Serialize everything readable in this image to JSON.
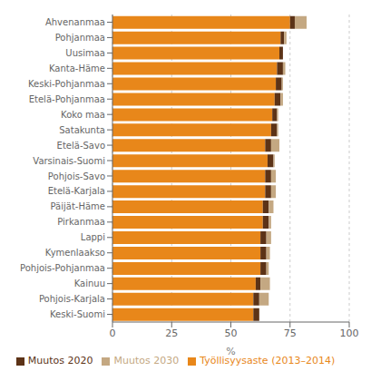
{
  "chart_data": {
    "type": "bar",
    "orientation": "horizontal",
    "stacked": true,
    "categories": [
      "Ahvenanmaa",
      "Pohjanmaa",
      "Uusimaa",
      "Kanta-Häme",
      "Keski-Pohjanmaa",
      "Etelä-Pohjanmaa",
      "Koko maa",
      "Satakunta",
      "Etelä-Savo",
      "Varsinais-Suomi",
      "Pohjois-Savo",
      "Etelä-Karjala",
      "Päijät-Häme",
      "Pirkanmaa",
      "Lappi",
      "Kymenlaakso",
      "Pohjois-Pohjanmaa",
      "Kainuu",
      "Pohjois-Karjala",
      "Keski-Suomi"
    ],
    "series": [
      {
        "name": "Työllisyysaste (2013–2014)",
        "color": "#E8871A",
        "values": [
          75.0,
          71.0,
          70.5,
          69.5,
          69.0,
          68.5,
          67.5,
          67.0,
          64.5,
          65.5,
          64.5,
          64.5,
          63.5,
          63.5,
          62.5,
          62.5,
          62.5,
          60.5,
          59.5,
          59.5
        ]
      },
      {
        "name": "Muutos 2020",
        "color": "#5C3317",
        "values": [
          2.0,
          1.5,
          1.5,
          2.5,
          2.5,
          2.5,
          2.0,
          2.5,
          2.5,
          2.5,
          2.5,
          2.5,
          2.5,
          2.5,
          2.5,
          2.5,
          2.5,
          2.0,
          2.5,
          2.5
        ]
      },
      {
        "name": "Muutos 2030",
        "color": "#C4A882",
        "values": [
          5.0,
          1.0,
          0.0,
          1.0,
          0.5,
          1.0,
          0.5,
          0.5,
          3.5,
          0.5,
          2.0,
          2.0,
          2.0,
          1.0,
          2.0,
          1.5,
          1.0,
          4.0,
          4.0,
          0.0
        ]
      }
    ],
    "xlabel": "%",
    "xlim": [
      0,
      100
    ],
    "xticks": [
      0,
      25,
      50,
      75,
      100
    ],
    "grid": true,
    "legend": "bottom"
  }
}
